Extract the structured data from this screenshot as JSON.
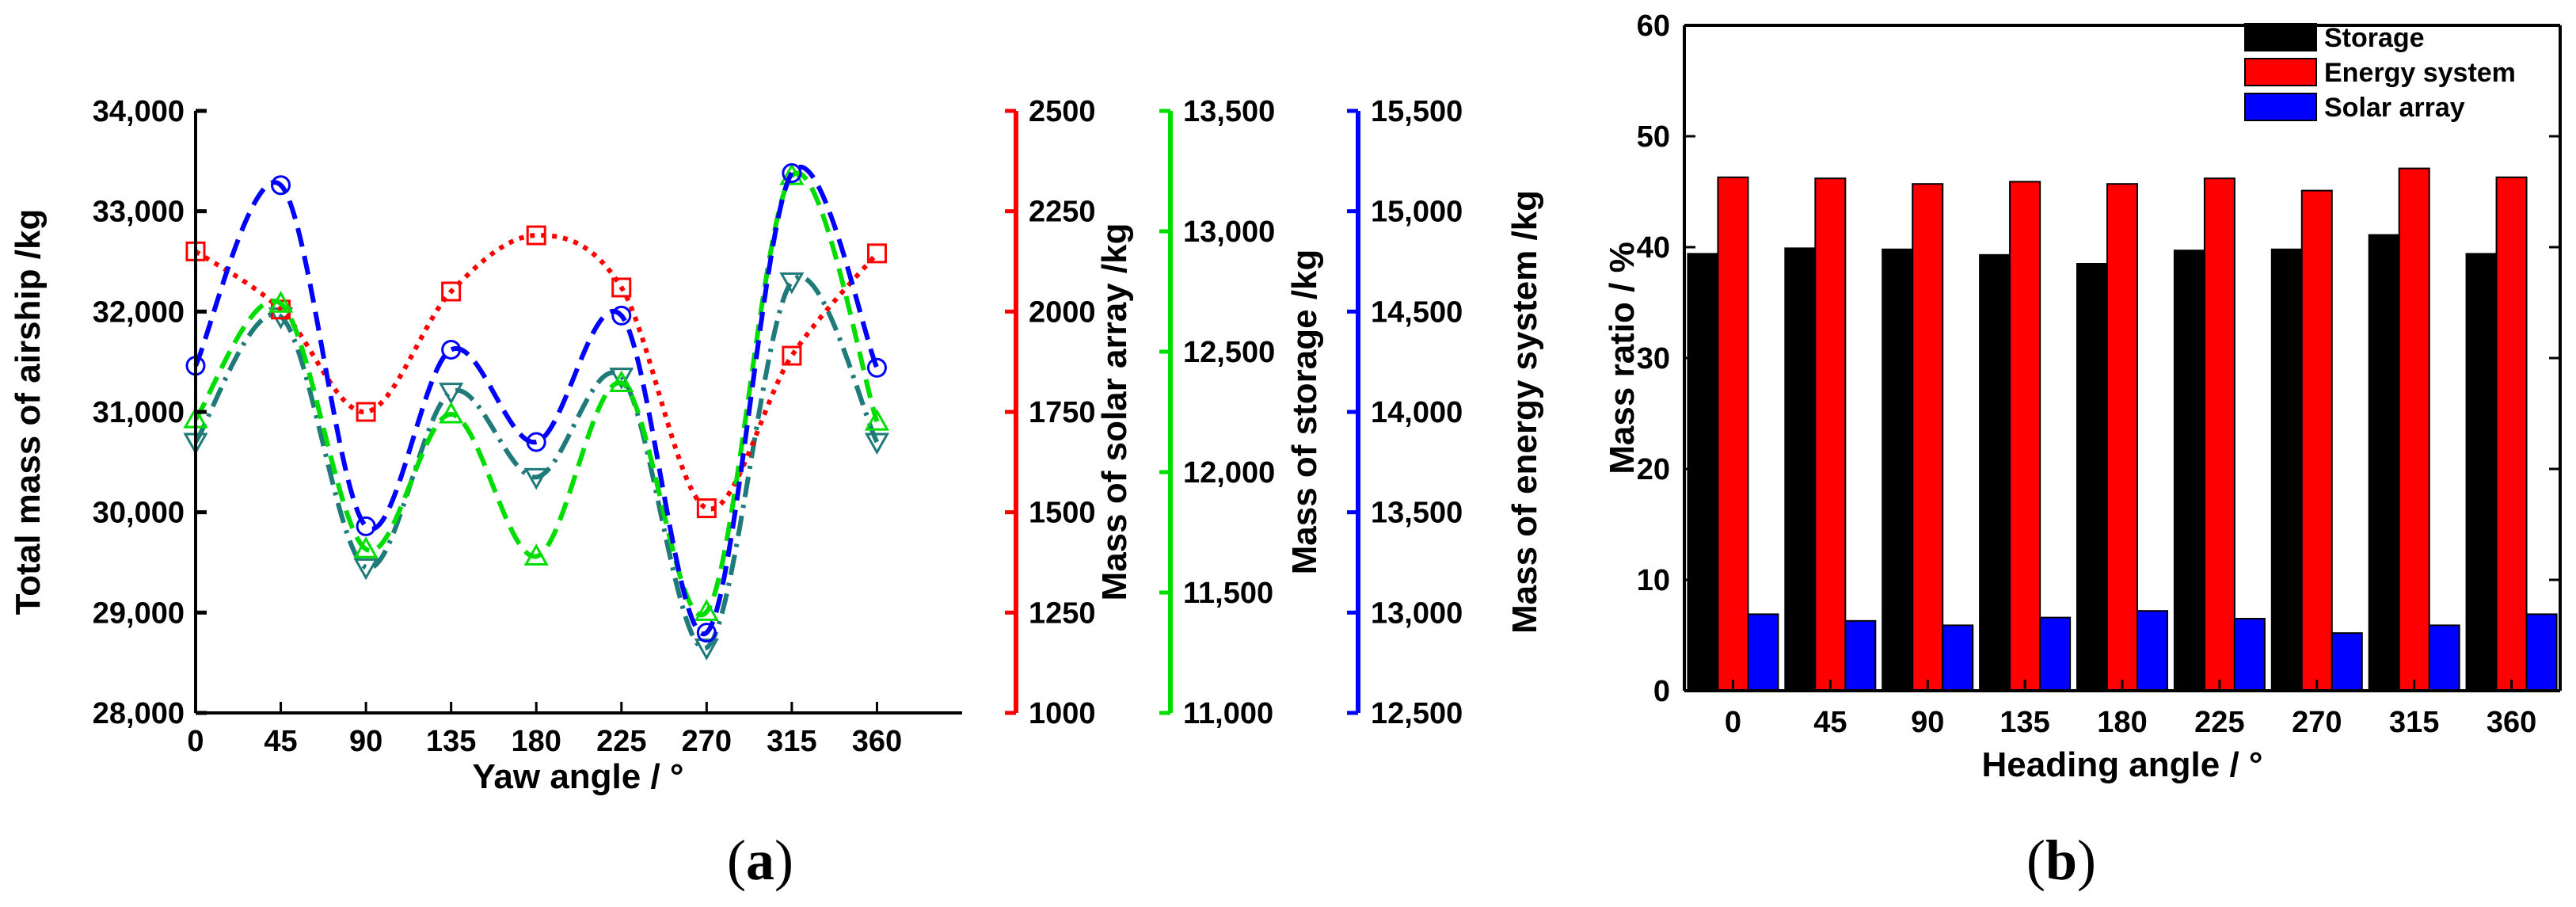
{
  "chart_data": [
    {
      "type": "line",
      "panel_label": "a",
      "xlabel": "Yaw angle / °",
      "x": [
        0,
        45,
        90,
        135,
        180,
        225,
        270,
        315,
        360
      ],
      "x_tick_labels": [
        "0",
        "45",
        "90",
        "135",
        "180",
        "225",
        "270",
        "315",
        "360"
      ],
      "xlim": [
        0,
        405
      ],
      "axes": [
        {
          "label": "Total mass of airship /kg",
          "side": "left",
          "color": "#000000",
          "ylim": [
            28000,
            34000
          ],
          "tick_labels": [
            "28,000",
            "29,000",
            "30,000",
            "31,000",
            "32,000",
            "33,000",
            "34,000"
          ]
        },
        {
          "label": "Mass of solar array /kg",
          "side": "right",
          "color": "#ff0000",
          "ylim": [
            1000,
            2500
          ],
          "tick_labels": [
            "1000",
            "1250",
            "1500",
            "1750",
            "2000",
            "2250",
            "2500"
          ]
        },
        {
          "label": "Mass of storage /kg",
          "side": "right",
          "color": "#00dd00",
          "ylim": [
            11000,
            13500
          ],
          "tick_labels": [
            "11,000",
            "11,500",
            "12,000",
            "12,500",
            "13,000",
            "13,500"
          ]
        },
        {
          "label": "Mass of energy system /kg",
          "side": "right",
          "color": "#0000ff",
          "ylim": [
            12500,
            15500
          ],
          "tick_labels": [
            "12,500",
            "13,000",
            "13,500",
            "14,000",
            "14,500",
            "15,000",
            "15,500"
          ]
        }
      ],
      "series": [
        {
          "axis": 0,
          "color": "#1f7a7a",
          "marker": "triangle-down",
          "line": "dash-dot",
          "values": [
            30700,
            31950,
            29450,
            31200,
            30350,
            31350,
            28650,
            32300,
            30700
          ]
        },
        {
          "axis": 1,
          "color": "#ff0000",
          "marker": "square",
          "line": "dotted",
          "values": [
            2150,
            2005,
            1750,
            2050,
            2190,
            2060,
            1510,
            1890,
            2145
          ]
        },
        {
          "axis": 2,
          "color": "#00dd00",
          "marker": "triangle-up",
          "line": "dashed",
          "values": [
            12220,
            12700,
            11680,
            12240,
            11650,
            12370,
            11420,
            13230,
            12210
          ]
        },
        {
          "axis": 3,
          "color": "#0000ff",
          "marker": "circle",
          "line": "dashed",
          "values": [
            14230,
            15130,
            13430,
            14310,
            13850,
            14480,
            12900,
            15190,
            14220
          ]
        }
      ]
    },
    {
      "type": "bar",
      "panel_label": "b",
      "xlabel": "Heading angle / °",
      "ylabel": "Mass ratio / %",
      "categories": [
        "0",
        "45",
        "90",
        "135",
        "180",
        "225",
        "270",
        "315",
        "360"
      ],
      "ylim": [
        0,
        60
      ],
      "y_tick_labels": [
        "0",
        "10",
        "20",
        "30",
        "40",
        "50",
        "60"
      ],
      "legend_position": "top-right",
      "series": [
        {
          "name": "Storage",
          "color": "#000000",
          "values": [
            39.4,
            39.9,
            39.8,
            39.3,
            38.5,
            39.7,
            39.8,
            41.1,
            39.4
          ]
        },
        {
          "name": "Energy system",
          "color": "#ff0000",
          "values": [
            46.3,
            46.2,
            45.7,
            45.9,
            45.7,
            46.2,
            45.1,
            47.1,
            46.3
          ]
        },
        {
          "name": "Solar array",
          "color": "#0000ff",
          "values": [
            6.9,
            6.3,
            5.9,
            6.6,
            7.2,
            6.5,
            5.2,
            5.9,
            6.9
          ]
        }
      ]
    }
  ]
}
